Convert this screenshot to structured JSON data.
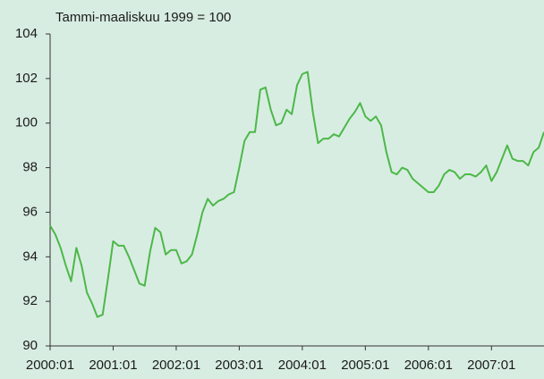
{
  "chart_data": {
    "type": "line",
    "subtitle": "Tammi-maaliskuu 1999 = 100",
    "categories": [
      "2000:01",
      null,
      null,
      null,
      null,
      null,
      null,
      null,
      null,
      null,
      null,
      null,
      "2001:01",
      null,
      null,
      null,
      null,
      null,
      null,
      null,
      null,
      null,
      null,
      null,
      "2002:01",
      null,
      null,
      null,
      null,
      null,
      null,
      null,
      null,
      null,
      null,
      null,
      "2003:01",
      null,
      null,
      null,
      null,
      null,
      null,
      null,
      null,
      null,
      null,
      null,
      "2004:01",
      null,
      null,
      null,
      null,
      null,
      null,
      null,
      null,
      null,
      null,
      null,
      "2005:01",
      null,
      null,
      null,
      null,
      null,
      null,
      null,
      null,
      null,
      null,
      null,
      "2006:01",
      null,
      null,
      null,
      null,
      null,
      null,
      null,
      null,
      null,
      null,
      null,
      "2007:01",
      null,
      null,
      null,
      null,
      null,
      null,
      null,
      null,
      null,
      null
    ],
    "series": [
      {
        "color": "#4cb848",
        "values": [
          95.4,
          95.0,
          94.4,
          93.6,
          92.9,
          94.4,
          93.6,
          92.4,
          91.9,
          91.3,
          91.4,
          93.0,
          94.7,
          94.5,
          94.5,
          94.0,
          93.4,
          92.8,
          92.7,
          94.2,
          95.3,
          95.1,
          94.1,
          94.3,
          94.3,
          93.7,
          93.8,
          94.1,
          95.0,
          96.0,
          96.6,
          96.3,
          96.5,
          96.6,
          96.8,
          96.9,
          98.0,
          99.2,
          99.6,
          99.6,
          101.5,
          101.6,
          100.6,
          99.9,
          100.0,
          100.6,
          100.4,
          101.7,
          102.2,
          102.3,
          100.5,
          99.1,
          99.3,
          99.3,
          99.5,
          99.4,
          99.8,
          100.2,
          100.5,
          100.9,
          100.3,
          100.1,
          100.3,
          99.9,
          98.7,
          97.8,
          97.7,
          98.0,
          97.9,
          97.5,
          97.3,
          97.1,
          96.9,
          96.9,
          97.2,
          97.7,
          97.9,
          97.8,
          97.5,
          97.7,
          97.7,
          97.6,
          97.8,
          98.1,
          97.4,
          97.8,
          98.4,
          99.0,
          98.4,
          98.3,
          98.3,
          98.1,
          98.7,
          98.9,
          99.6
        ]
      }
    ],
    "ylim": [
      90,
      104
    ],
    "yticks": [
      90,
      92,
      94,
      96,
      98,
      100,
      102,
      104
    ],
    "grid": false
  }
}
